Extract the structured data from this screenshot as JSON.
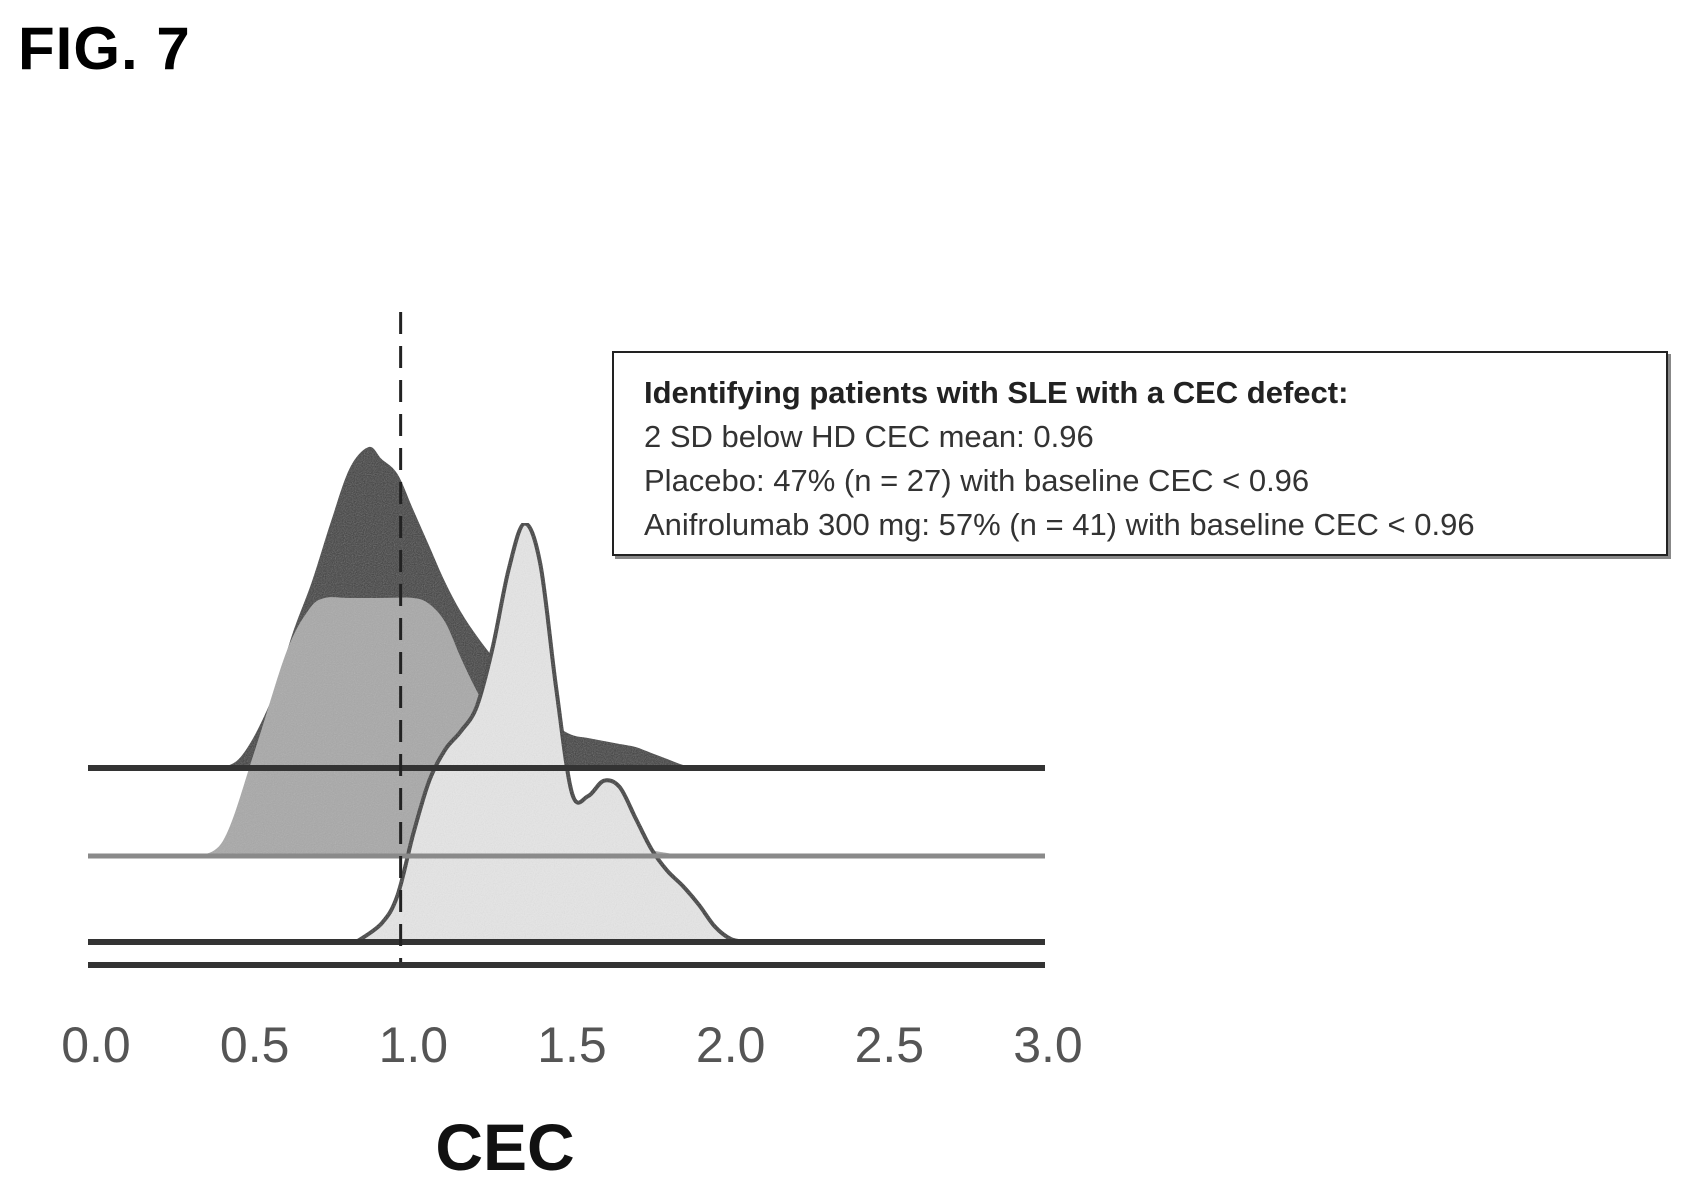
{
  "figure_label": "FIG. 7",
  "annotation": {
    "title": "Identifying patients with SLE with a CEC defect:",
    "lines": [
      "2  SD below HD CEC mean: 0.96",
      "Placebo: 47% (n = 27) with baseline CEC < 0.96",
      "Anifrolumab 300 mg: 57% (n = 41) with baseline CEC < 0.96"
    ]
  },
  "chart_data": {
    "type": "area",
    "subtype": "ridgeline-density",
    "title": "",
    "xlabel": "CEC",
    "ylabel": "",
    "xlim": [
      0.0,
      3.0
    ],
    "xticks": [
      "0.0",
      "0.5",
      "1.0",
      "1.5",
      "2.0",
      "2.5",
      "3.0"
    ],
    "threshold": 0.96,
    "grid": false,
    "series": [
      {
        "fill": "#3a3a3a",
        "x": [
          0.35,
          0.45,
          0.55,
          0.62,
          0.68,
          0.74,
          0.8,
          0.86,
          0.9,
          0.95,
          1.0,
          1.05,
          1.1,
          1.15,
          1.2,
          1.25,
          1.3,
          1.35,
          1.4,
          1.45,
          1.5,
          1.55,
          1.6,
          1.65,
          1.7,
          1.75,
          1.8,
          1.85,
          1.9
        ],
        "density": [
          0.0,
          0.03,
          0.22,
          0.45,
          0.62,
          0.82,
          1.0,
          1.07,
          1.03,
          0.98,
          0.86,
          0.74,
          0.62,
          0.52,
          0.44,
          0.37,
          0.3,
          0.24,
          0.18,
          0.14,
          0.11,
          0.1,
          0.09,
          0.08,
          0.07,
          0.05,
          0.03,
          0.01,
          0.0
        ]
      },
      {
        "fill": "#a8a8a8",
        "x": [
          0.3,
          0.4,
          0.5,
          0.6,
          0.67,
          0.72,
          0.8,
          0.9,
          1.0,
          1.05,
          1.1,
          1.15,
          1.2,
          1.25,
          1.3,
          1.35,
          1.4,
          1.45,
          1.5,
          1.55,
          1.6,
          1.65,
          1.7,
          1.75,
          1.8,
          1.85
        ],
        "density": [
          0.0,
          0.05,
          0.35,
          0.68,
          0.82,
          0.86,
          0.86,
          0.86,
          0.86,
          0.84,
          0.78,
          0.66,
          0.55,
          0.46,
          0.39,
          0.33,
          0.28,
          0.23,
          0.18,
          0.14,
          0.1,
          0.07,
          0.04,
          0.02,
          0.01,
          0.0
        ]
      },
      {
        "fill": "#e6e6e6",
        "outline": "#333333",
        "x": [
          0.82,
          0.9,
          0.95,
          1.0,
          1.05,
          1.1,
          1.15,
          1.2,
          1.25,
          1.3,
          1.35,
          1.4,
          1.45,
          1.5,
          1.55,
          1.6,
          1.65,
          1.7,
          1.75,
          1.8,
          1.85,
          1.9,
          1.95,
          2.0,
          2.05
        ],
        "density": [
          0.0,
          0.06,
          0.15,
          0.35,
          0.52,
          0.62,
          0.68,
          0.76,
          0.95,
          1.2,
          1.35,
          1.22,
          0.82,
          0.48,
          0.47,
          0.52,
          0.5,
          0.4,
          0.3,
          0.23,
          0.18,
          0.12,
          0.05,
          0.01,
          0.0
        ]
      }
    ]
  }
}
